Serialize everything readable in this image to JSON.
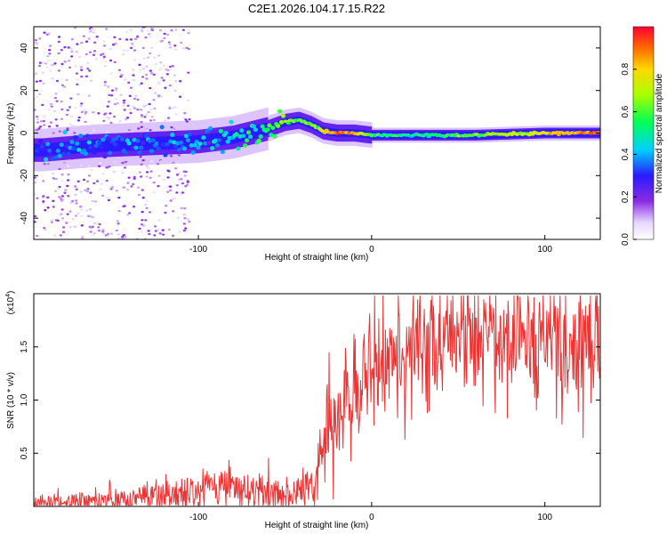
{
  "title": "C2E1.2026.104.17.15.R22",
  "chart_data": [
    {
      "type": "heatmap",
      "xlabel": "Height of straight line (km)",
      "ylabel": "Frequency (Hz)",
      "xlim": [
        -195,
        132
      ],
      "ylim": [
        -50,
        50
      ],
      "xticks": [
        -100,
        0,
        100
      ],
      "xtick_labels": [
        "-100",
        "0",
        "100"
      ],
      "yticks": [
        -40,
        -20,
        0,
        20,
        40
      ],
      "ytick_labels": [
        "-40",
        "-20",
        "0",
        "20",
        "40"
      ],
      "colorbar": {
        "label": "Normalized spectral amplitude",
        "range": [
          0,
          1
        ],
        "ticks": [
          0.0,
          0.2,
          0.4,
          0.6,
          0.8
        ],
        "tick_labels": [
          "0.0",
          "0.2",
          "0.4",
          "0.6",
          "0.8"
        ]
      },
      "ridge": {
        "x": [
          -190,
          -160,
          -130,
          -100,
          -80,
          -60,
          -50,
          -42,
          -35,
          -28,
          -20,
          -10,
          0,
          20,
          60,
          100,
          132
        ],
        "freq_hz": [
          -8,
          -6,
          -5,
          -4,
          -2,
          2,
          5,
          6,
          4,
          1,
          0,
          0,
          -1,
          -1,
          -1,
          0,
          0
        ],
        "amplitude": [
          0.35,
          0.35,
          0.35,
          0.4,
          0.45,
          0.55,
          0.6,
          0.6,
          0.6,
          0.75,
          0.9,
          0.85,
          0.55,
          0.5,
          0.6,
          0.75,
          0.95
        ]
      }
    },
    {
      "type": "line",
      "xlabel": "Height of straight line (km)",
      "ylabel": "SNR (10 * v/v)",
      "scale_label_base": "(x10",
      "scale_label_exp": "4",
      "scale_label_end": ")",
      "xlim": [
        -195,
        132
      ],
      "ylim": [
        0,
        2.0
      ],
      "xticks": [
        -100,
        0,
        100
      ],
      "xtick_labels": [
        "-100",
        "0",
        "100"
      ],
      "yticks": [
        0.5,
        1.0,
        1.5
      ],
      "ytick_labels": [
        "0.5",
        "1.0",
        "1.5"
      ],
      "color": "#ee3333",
      "series": [
        {
          "name": "SNR",
          "x": [
            -195,
            -150,
            -120,
            -100,
            -80,
            -60,
            -45,
            -35,
            -30,
            -25,
            -20,
            -15,
            -10,
            -5,
            0,
            5,
            10,
            20,
            30,
            40,
            60,
            80,
            100,
            115,
            132
          ],
          "y": [
            0.02,
            0.05,
            0.1,
            0.15,
            0.2,
            0.15,
            0.1,
            0.2,
            0.45,
            0.65,
            0.8,
            0.95,
            1.1,
            1.2,
            1.3,
            1.35,
            1.4,
            1.5,
            1.55,
            1.58,
            1.6,
            1.6,
            1.55,
            1.5,
            1.45
          ]
        }
      ]
    }
  ]
}
